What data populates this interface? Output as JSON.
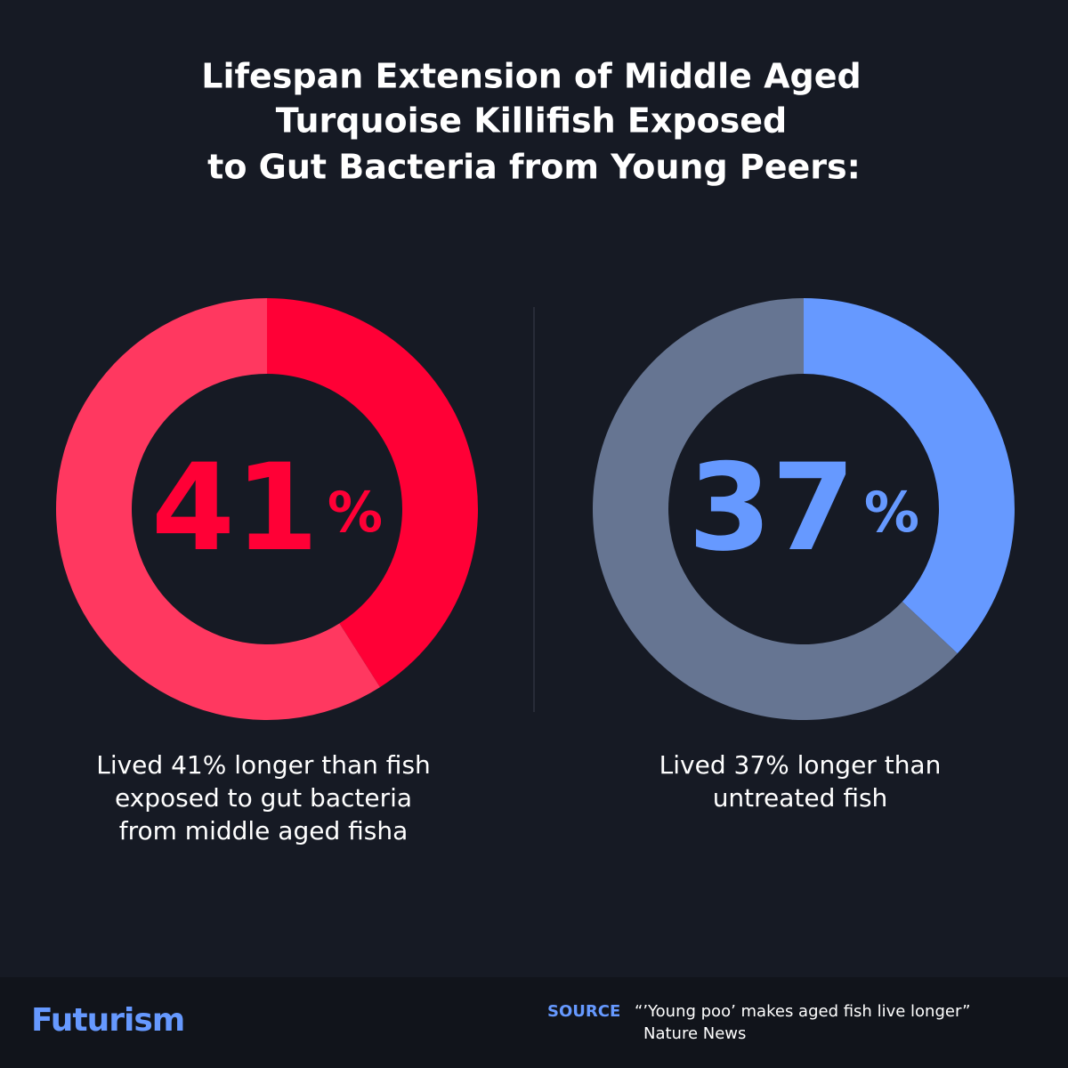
{
  "title": [
    "Lifespan Extension of Middle Aged",
    "Turquoise Killifish Exposed",
    "to Gut Bacteria from Young Peers:"
  ],
  "chart_data": [
    {
      "type": "donut",
      "values": [
        41,
        59
      ],
      "colors": [
        "#ff0036",
        "#ff3860"
      ],
      "center_suffix": "%",
      "caption": [
        "Lived 41% longer than fish",
        "exposed to gut bacteria",
        "from middle aged fisha"
      ]
    },
    {
      "type": "donut",
      "values": [
        37,
        63
      ],
      "colors": [
        "#6699ff",
        "#667592"
      ],
      "center_suffix": "%",
      "caption": [
        "Lived 37% longer than",
        "untreated fish"
      ]
    }
  ],
  "footer": {
    "brand": "Futurism",
    "source_label": "SOURCE",
    "source_lines": [
      "“’Young poo’ makes aged fish live longer”",
      "Nature News"
    ]
  }
}
